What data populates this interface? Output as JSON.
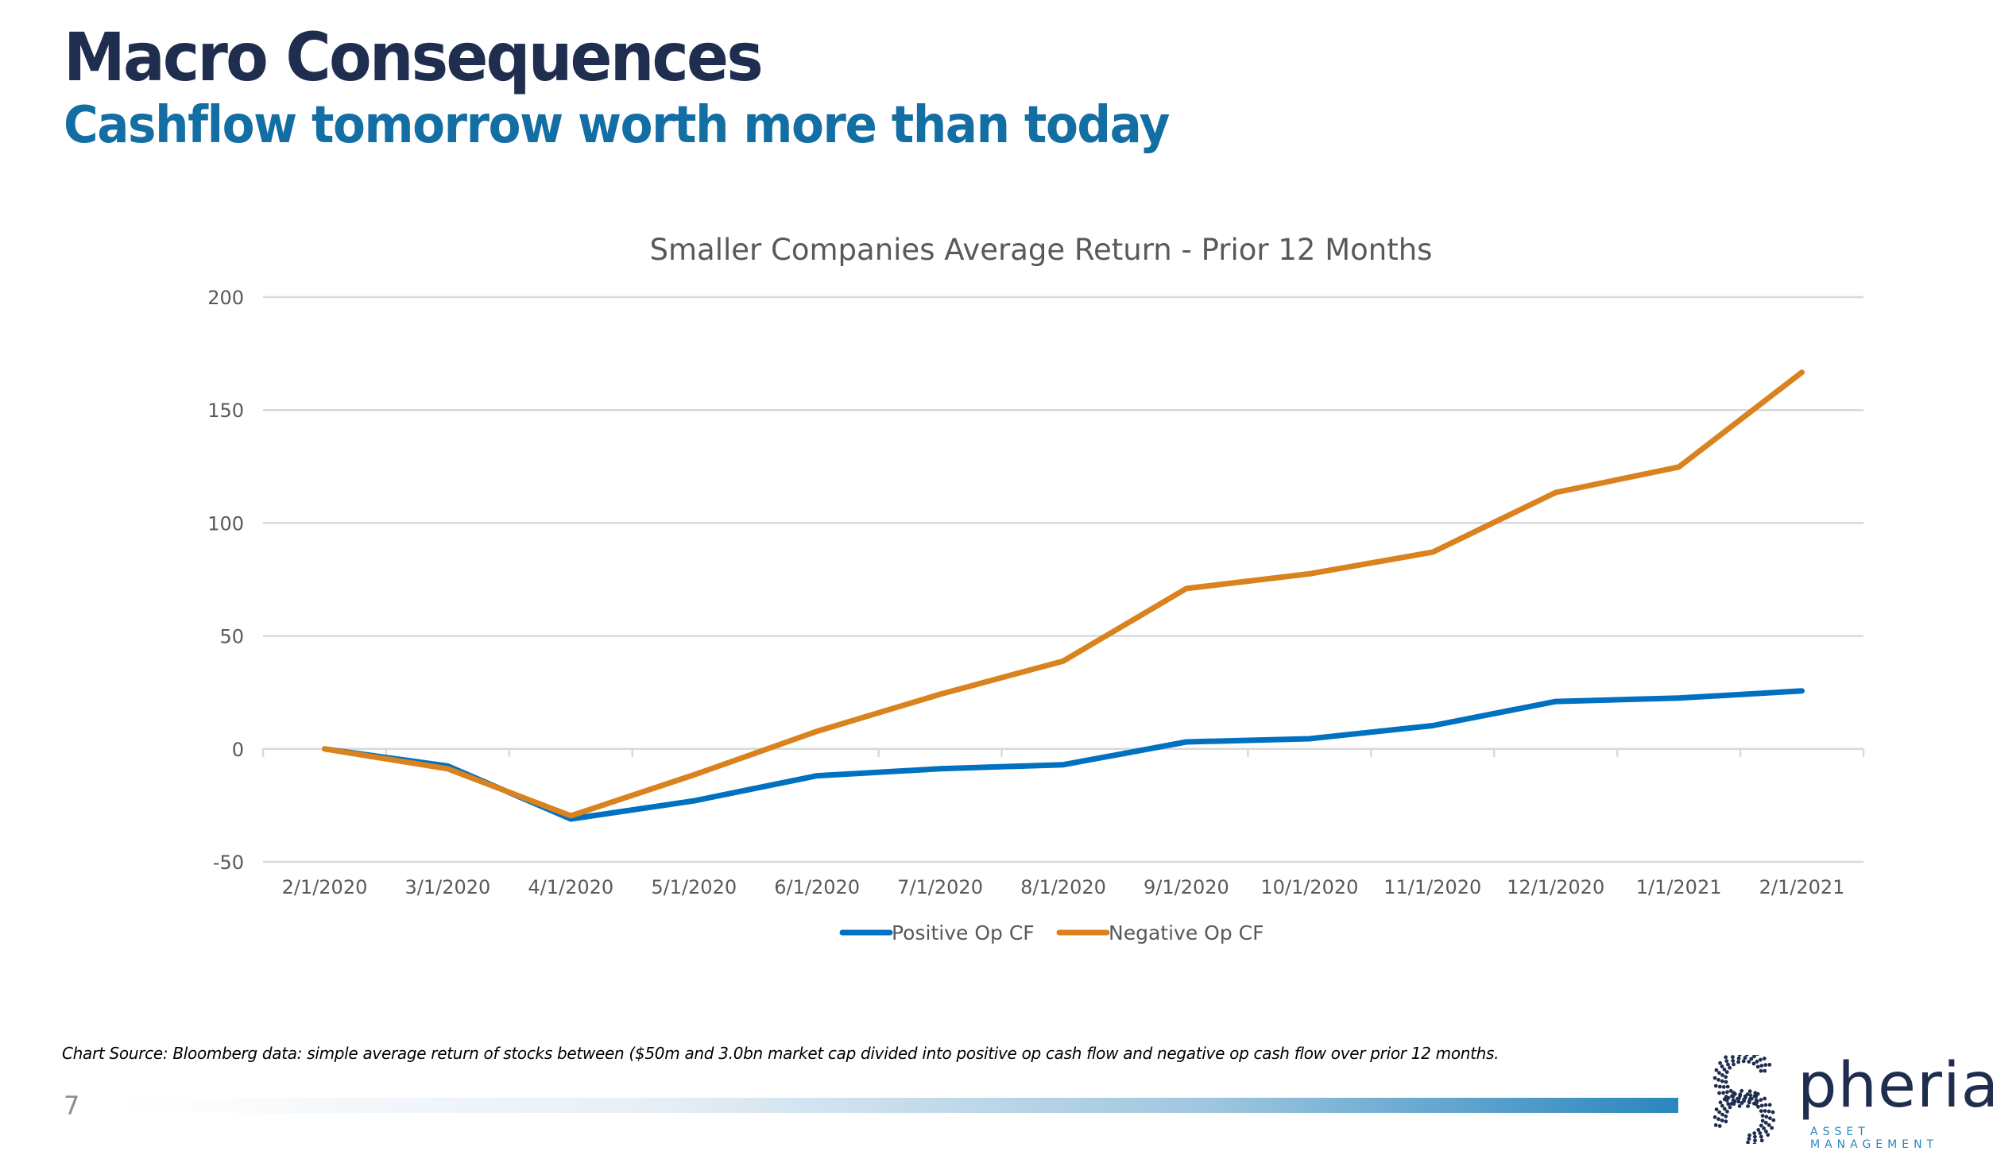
{
  "header": {
    "title": "Macro Consequences",
    "subtitle": "Cashflow tomorrow worth more than today"
  },
  "colors": {
    "title": "#1f2d4e",
    "subtitle": "#136ea4",
    "positive_series": "#0070c0",
    "negative_series": "#d9821e",
    "gridline": "#d9d9d9",
    "axis_text": "#595959"
  },
  "chart_data": {
    "type": "line",
    "title": "Smaller Companies Average Return - Prior 12 Months",
    "xlabel": "",
    "ylabel": "",
    "categories": [
      "2/1/2020",
      "3/1/2020",
      "4/1/2020",
      "5/1/2020",
      "6/1/2020",
      "7/1/2020",
      "8/1/2020",
      "9/1/2020",
      "10/1/2020",
      "11/1/2020",
      "12/1/2020",
      "1/1/2021",
      "2/1/2021"
    ],
    "series": [
      {
        "name": "Positive Op CF",
        "color": "#0070c0",
        "values": [
          0,
          -7.6,
          -31,
          -23,
          -11.9,
          -8.8,
          -7,
          3.1,
          4.5,
          10.3,
          21,
          22.5,
          25.7
        ]
      },
      {
        "name": "Negative Op CF",
        "color": "#d9821e",
        "values": [
          0,
          -8.8,
          -29.6,
          -11.5,
          7.8,
          24.2,
          38.9,
          71,
          77.5,
          87.1,
          113.5,
          124.8,
          166.7
        ]
      }
    ],
    "ylim": [
      -50,
      200
    ],
    "yticks": [
      -50,
      0,
      50,
      100,
      150,
      200
    ],
    "ytick_labels": [
      "-50",
      "0",
      "50",
      "100",
      "150",
      "200"
    ],
    "grid": true,
    "legend_position": "bottom-center"
  },
  "footer": {
    "source_note": "Chart Source: Bloomberg data: simple average return of stocks between ($50m and 3.0bn market cap divided into positive op cash flow and negative op cash flow over prior 12 months.",
    "page_number": "7",
    "logo_name": "pheria",
    "logo_tagline": "ASSET MANAGEMENT",
    "logo_icon": "dotted-s-icon"
  }
}
